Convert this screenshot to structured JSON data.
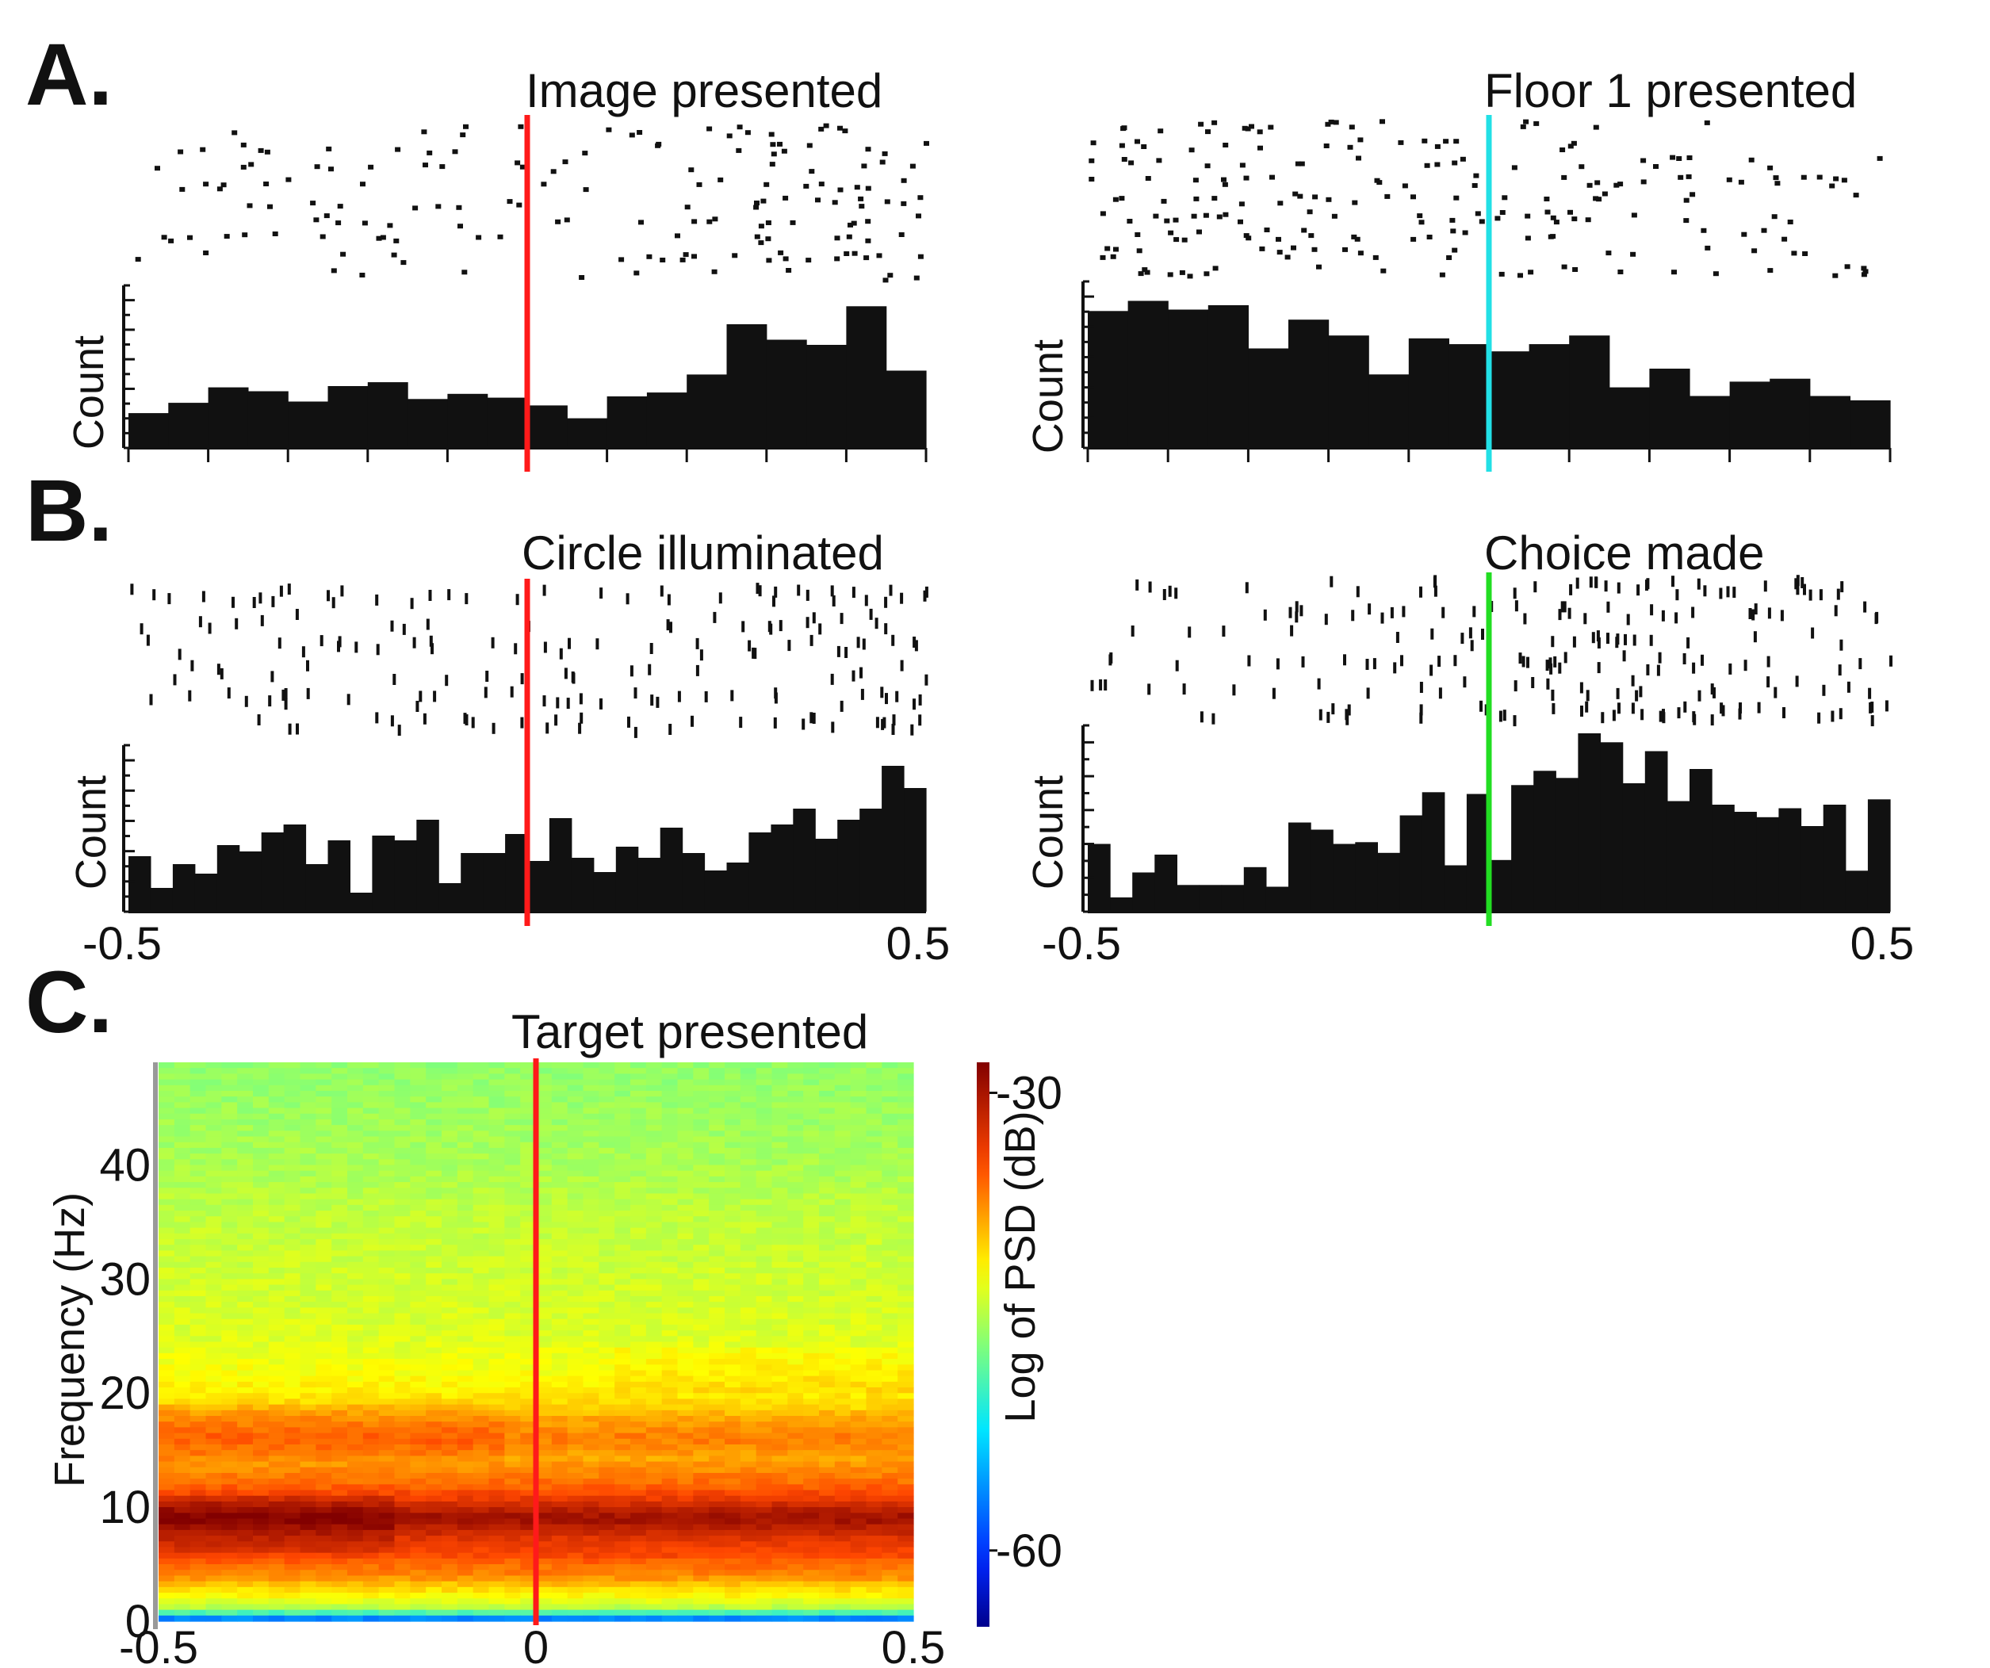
{
  "panels": {
    "A": "A.",
    "B": "B.",
    "C": "C."
  },
  "chart_data": [
    {
      "type": "bar",
      "subtype": "raster-histogram",
      "panel": "A",
      "title": "Image presented",
      "ylabel": "Count",
      "xlim": [
        -0.5,
        0.5
      ],
      "event_x": 0,
      "event_color": "#ff1a1a",
      "bin_edges_note": "20 bins of 0.05 s",
      "values": [
        2.7,
        3.5,
        4.7,
        4.4,
        3.6,
        4.8,
        5.1,
        3.8,
        4.2,
        3.9,
        3.3,
        2.3,
        4.0,
        4.3,
        5.7,
        9.6,
        8.4,
        8.0,
        11.0,
        6.0
      ],
      "ylim": [
        0,
        12
      ]
    },
    {
      "type": "bar",
      "subtype": "raster-histogram",
      "panel": "A",
      "title": "Floor 1 presented",
      "ylabel": "Count",
      "xlim": [
        -0.5,
        0.5
      ],
      "event_x": 0,
      "event_color": "#22e0e6",
      "values": [
        9.5,
        10.2,
        9.6,
        9.9,
        6.9,
        8.9,
        7.8,
        5.1,
        7.6,
        7.2,
        6.7,
        7.2,
        7.8,
        4.2,
        5.5,
        3.6,
        4.6,
        4.8,
        3.6,
        3.3
      ],
      "ylim": [
        0,
        11
      ]
    },
    {
      "type": "bar",
      "subtype": "raster-histogram",
      "panel": "B",
      "title": "Circle illuminated",
      "ylabel": "Count",
      "xlim": [
        -0.5,
        0.5
      ],
      "event_x": 0,
      "event_color": "#ff1a1a",
      "values": [
        3.5,
        1.5,
        3.0,
        2.4,
        4.2,
        3.8,
        5.0,
        5.5,
        3.0,
        4.5,
        1.2,
        4.8,
        4.5,
        5.8,
        1.8,
        3.7,
        3.7,
        4.9,
        3.2,
        5.9,
        3.4,
        2.5,
        4.1,
        3.4,
        5.3,
        3.7,
        2.6,
        3.1,
        5.0,
        5.5,
        6.5,
        4.6,
        5.8,
        6.5,
        9.2,
        7.8
      ],
      "ylim": [
        0,
        10
      ]
    },
    {
      "type": "bar",
      "subtype": "raster-histogram",
      "panel": "B",
      "title": "Choice made",
      "ylabel": "Count",
      "xlim": [
        -0.5,
        0.5
      ],
      "xticks": [
        "-0.5",
        "0.5"
      ],
      "event_x": 0,
      "event_color": "#22dd22",
      "values": [
        3.8,
        0.8,
        2.2,
        3.2,
        1.5,
        1.5,
        1.5,
        2.5,
        1.4,
        5.0,
        4.6,
        3.8,
        3.9,
        3.3,
        5.4,
        6.7,
        2.6,
        6.6,
        2.9,
        7.1,
        7.9,
        7.5,
        10.0,
        9.5,
        7.2,
        9.0,
        6.2,
        8.0,
        6.0,
        5.6,
        5.3,
        5.8,
        4.8,
        6.0,
        2.3,
        6.3
      ],
      "ylim": [
        0,
        10
      ]
    },
    {
      "type": "heatmap",
      "panel": "C",
      "title": "Target presented",
      "xlabel": "",
      "ylabel": "Frequency (Hz)",
      "xlim": [
        -0.5,
        0.5
      ],
      "xticks": [
        "-0.5",
        "0",
        "0.5"
      ],
      "ylim": [
        0,
        49
      ],
      "yticks": [
        "0",
        "10",
        "20",
        "30",
        "40"
      ],
      "colorbar_label": "Log of PSD (dB)",
      "colorbar_range": [
        -65,
        -28
      ],
      "colorbar_ticks": [
        "-30",
        "-60"
      ],
      "event_color": "#ff1a1a",
      "frequency_profile_db": [
        [
          0,
          -60
        ],
        [
          1,
          -45
        ],
        [
          2,
          -42
        ],
        [
          3,
          -40
        ],
        [
          4,
          -37
        ],
        [
          5,
          -36
        ],
        [
          6,
          -34
        ],
        [
          7,
          -33
        ],
        [
          8,
          -31
        ],
        [
          9,
          -29
        ],
        [
          10,
          -31
        ],
        [
          11,
          -34
        ],
        [
          12,
          -36
        ],
        [
          13,
          -37
        ],
        [
          14,
          -38
        ],
        [
          15,
          -37
        ],
        [
          16,
          -36
        ],
        [
          17,
          -37
        ],
        [
          18,
          -38
        ],
        [
          19,
          -40
        ],
        [
          20,
          -41
        ],
        [
          22,
          -42
        ],
        [
          25,
          -43
        ],
        [
          30,
          -43.5
        ],
        [
          35,
          -44
        ],
        [
          40,
          -45
        ],
        [
          45,
          -45.5
        ],
        [
          49,
          -46
        ]
      ]
    }
  ]
}
